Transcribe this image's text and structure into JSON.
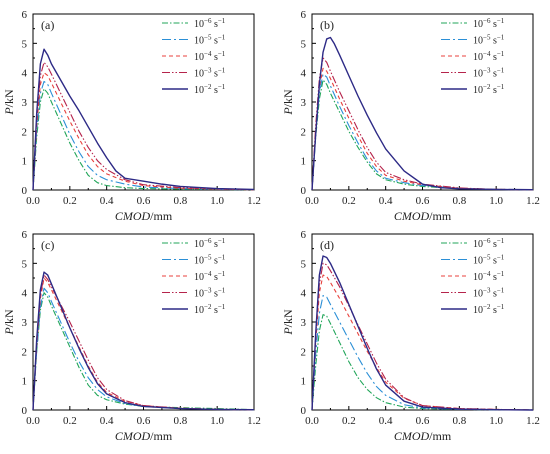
{
  "chart_data": [
    {
      "type": "line",
      "panel_label": "(a)",
      "xlabel_italic": "CMOD",
      "xlabel_unit": "/mm",
      "ylabel_italic": "P",
      "ylabel_unit": "/kN",
      "xlim": [
        0,
        1.2
      ],
      "ylim": [
        0,
        6
      ],
      "xticks": [
        "0.0",
        "0.2",
        "0.4",
        "0.6",
        "0.8",
        "1.0",
        "1.2"
      ],
      "yticks": [
        "0",
        "1",
        "2",
        "3",
        "4",
        "5",
        "6"
      ],
      "grid": false,
      "legend_position": "top-right",
      "series": [
        {
          "legend_base": "10",
          "legend_exp": "−6",
          "legend_unit": " s",
          "legend_unit_exp": "−1",
          "color": "#22a65a",
          "dash": "6,2,1.5,2",
          "x": [
            0,
            0.02,
            0.04,
            0.06,
            0.08,
            0.1,
            0.15,
            0.2,
            0.25,
            0.3,
            0.35,
            0.4,
            0.5,
            0.6,
            0.8,
            1.0,
            1.2
          ],
          "y": [
            0,
            1.8,
            3.0,
            3.45,
            3.3,
            3.0,
            2.3,
            1.6,
            1.0,
            0.5,
            0.25,
            0.15,
            0.08,
            0.05,
            0.03,
            0.02,
            0.01
          ]
        },
        {
          "legend_base": "10",
          "legend_exp": "−5",
          "legend_unit": " s",
          "legend_unit_exp": "−1",
          "color": "#2b8fd6",
          "dash": "9,3,2,3",
          "x": [
            0,
            0.02,
            0.04,
            0.06,
            0.08,
            0.1,
            0.15,
            0.2,
            0.25,
            0.3,
            0.35,
            0.4,
            0.5,
            0.6,
            0.8,
            1.0,
            1.2
          ],
          "y": [
            0,
            2.0,
            3.3,
            3.7,
            3.6,
            3.3,
            2.6,
            1.9,
            1.3,
            0.8,
            0.5,
            0.35,
            0.2,
            0.1,
            0.05,
            0.02,
            0.01
          ]
        },
        {
          "legend_base": "10",
          "legend_exp": "−4",
          "legend_unit": " s",
          "legend_unit_exp": "−1",
          "color": "#e8413c",
          "dash": "4,3",
          "x": [
            0,
            0.02,
            0.04,
            0.06,
            0.08,
            0.1,
            0.15,
            0.2,
            0.25,
            0.3,
            0.35,
            0.4,
            0.5,
            0.6,
            0.8,
            1.0,
            1.2
          ],
          "y": [
            0,
            2.2,
            3.6,
            4.0,
            3.9,
            3.65,
            3.0,
            2.35,
            1.75,
            1.2,
            0.8,
            0.55,
            0.3,
            0.15,
            0.06,
            0.03,
            0.01
          ]
        },
        {
          "legend_base": "10",
          "legend_exp": "−3",
          "legend_unit": " s",
          "legend_unit_exp": "−1",
          "color": "#b5234b",
          "dash": "8,2,1.5,2,1.5,2",
          "x": [
            0,
            0.02,
            0.04,
            0.06,
            0.08,
            0.1,
            0.15,
            0.2,
            0.25,
            0.3,
            0.35,
            0.4,
            0.5,
            0.6,
            0.8,
            1.0,
            1.2
          ],
          "y": [
            0,
            2.4,
            3.9,
            4.35,
            4.2,
            3.95,
            3.3,
            2.65,
            2.0,
            1.45,
            1.0,
            0.7,
            0.35,
            0.18,
            0.08,
            0.03,
            0.01
          ]
        },
        {
          "legend_base": "10",
          "legend_exp": "−2",
          "legend_unit": " s",
          "legend_unit_exp": "−1",
          "color": "#2d2a86",
          "dash": "",
          "x": [
            0,
            0.02,
            0.04,
            0.06,
            0.08,
            0.1,
            0.15,
            0.2,
            0.25,
            0.3,
            0.35,
            0.4,
            0.45,
            0.5,
            0.6,
            0.7,
            0.8,
            1.0,
            1.2
          ],
          "y": [
            0,
            2.6,
            4.3,
            4.8,
            4.6,
            4.3,
            3.75,
            3.2,
            2.7,
            2.15,
            1.6,
            1.1,
            0.65,
            0.4,
            0.3,
            0.2,
            0.12,
            0.05,
            0.02
          ]
        }
      ]
    },
    {
      "type": "line",
      "panel_label": "(b)",
      "xlabel_italic": "CMOD",
      "xlabel_unit": "/mm",
      "ylabel_italic": "P",
      "ylabel_unit": "/kN",
      "xlim": [
        0,
        1.2
      ],
      "ylim": [
        0,
        6
      ],
      "xticks": [
        "0.0",
        "0.2",
        "0.4",
        "0.6",
        "0.8",
        "1.0",
        "1.2"
      ],
      "yticks": [
        "0",
        "1",
        "2",
        "3",
        "4",
        "5",
        "6"
      ],
      "grid": false,
      "legend_position": "top-right",
      "series": [
        {
          "legend_base": "10",
          "legend_exp": "−6",
          "legend_unit": " s",
          "legend_unit_exp": "−1",
          "color": "#22a65a",
          "dash": "6,2,1.5,2",
          "x": [
            0,
            0.02,
            0.04,
            0.06,
            0.08,
            0.1,
            0.15,
            0.2,
            0.25,
            0.3,
            0.35,
            0.4,
            0.5,
            0.6,
            0.8,
            1.0,
            1.2
          ],
          "y": [
            0,
            1.8,
            3.1,
            3.75,
            3.6,
            3.3,
            2.65,
            2.0,
            1.45,
            0.95,
            0.55,
            0.35,
            0.2,
            0.12,
            0.05,
            0.02,
            0.01
          ]
        },
        {
          "legend_base": "10",
          "legend_exp": "−5",
          "legend_unit": " s",
          "legend_unit_exp": "−1",
          "color": "#2b8fd6",
          "dash": "9,3,2,3",
          "x": [
            0,
            0.02,
            0.04,
            0.06,
            0.08,
            0.1,
            0.15,
            0.2,
            0.25,
            0.3,
            0.35,
            0.4,
            0.5,
            0.6,
            0.8,
            1.0,
            1.2
          ],
          "y": [
            0,
            1.9,
            3.3,
            3.95,
            3.85,
            3.55,
            2.85,
            2.2,
            1.6,
            1.05,
            0.65,
            0.4,
            0.25,
            0.15,
            0.06,
            0.02,
            0.01
          ]
        },
        {
          "legend_base": "10",
          "legend_exp": "−4",
          "legend_unit": " s",
          "legend_unit_exp": "−1",
          "color": "#e8413c",
          "dash": "4,3",
          "x": [
            0,
            0.02,
            0.04,
            0.06,
            0.08,
            0.1,
            0.15,
            0.2,
            0.25,
            0.3,
            0.35,
            0.4,
            0.5,
            0.6,
            0.8,
            1.0,
            1.2
          ],
          "y": [
            0,
            2.0,
            3.5,
            4.15,
            4.05,
            3.8,
            3.1,
            2.45,
            1.85,
            1.25,
            0.8,
            0.5,
            0.3,
            0.18,
            0.06,
            0.02,
            0.01
          ]
        },
        {
          "legend_base": "10",
          "legend_exp": "−3",
          "legend_unit": " s",
          "legend_unit_exp": "−1",
          "color": "#b5234b",
          "dash": "8,2,1.5,2,1.5,2",
          "x": [
            0,
            0.02,
            0.04,
            0.06,
            0.08,
            0.1,
            0.15,
            0.2,
            0.25,
            0.3,
            0.35,
            0.4,
            0.5,
            0.6,
            0.8,
            1.0,
            1.2
          ],
          "y": [
            0,
            2.2,
            3.8,
            4.5,
            4.35,
            4.05,
            3.35,
            2.7,
            2.05,
            1.45,
            0.95,
            0.6,
            0.35,
            0.2,
            0.07,
            0.02,
            0.01
          ]
        },
        {
          "legend_base": "10",
          "legend_exp": "−2",
          "legend_unit": " s",
          "legend_unit_exp": "−1",
          "color": "#2d2a86",
          "dash": "",
          "x": [
            0,
            0.02,
            0.04,
            0.06,
            0.08,
            0.1,
            0.12,
            0.15,
            0.2,
            0.25,
            0.3,
            0.35,
            0.4,
            0.5,
            0.6,
            0.7,
            0.8,
            1.0,
            1.2
          ],
          "y": [
            0,
            1.9,
            3.6,
            4.7,
            5.15,
            5.2,
            5.0,
            4.6,
            3.9,
            3.2,
            2.55,
            1.95,
            1.4,
            0.65,
            0.2,
            0.08,
            0.04,
            0.02,
            0.01
          ]
        }
      ]
    },
    {
      "type": "line",
      "panel_label": "(c)",
      "xlabel_italic": "CMOD",
      "xlabel_unit": "/mm",
      "ylabel_italic": "P",
      "ylabel_unit": "/kN",
      "xlim": [
        0,
        1.2
      ],
      "ylim": [
        0,
        6
      ],
      "xticks": [
        "0.0",
        "0.2",
        "0.4",
        "0.6",
        "0.8",
        "1.0",
        "1.2"
      ],
      "yticks": [
        "0",
        "1",
        "2",
        "3",
        "4",
        "5",
        "6"
      ],
      "grid": false,
      "legend_position": "top-right",
      "series": [
        {
          "legend_base": "10",
          "legend_exp": "−6",
          "legend_unit": " s",
          "legend_unit_exp": "−1",
          "color": "#22a65a",
          "dash": "6,2,1.5,2",
          "x": [
            0,
            0.02,
            0.04,
            0.06,
            0.08,
            0.1,
            0.15,
            0.2,
            0.25,
            0.3,
            0.35,
            0.4,
            0.5,
            0.6,
            0.8,
            1.0,
            1.1,
            1.2
          ],
          "y": [
            0,
            2.0,
            3.4,
            4.0,
            3.85,
            3.55,
            2.85,
            2.15,
            1.45,
            0.85,
            0.5,
            0.35,
            0.2,
            0.12,
            0.08,
            0.05,
            0.03,
            0.01
          ]
        },
        {
          "legend_base": "10",
          "legend_exp": "−5",
          "legend_unit": " s",
          "legend_unit_exp": "−1",
          "color": "#2b8fd6",
          "dash": "9,3,2,3",
          "x": [
            0,
            0.02,
            0.04,
            0.06,
            0.08,
            0.1,
            0.15,
            0.2,
            0.25,
            0.3,
            0.35,
            0.4,
            0.5,
            0.6,
            0.8,
            1.0,
            1.2
          ],
          "y": [
            0,
            2.0,
            3.5,
            4.15,
            4.0,
            3.7,
            3.0,
            2.3,
            1.65,
            1.1,
            0.7,
            0.45,
            0.22,
            0.12,
            0.05,
            0.02,
            0.01
          ]
        },
        {
          "legend_base": "10",
          "legend_exp": "−4",
          "legend_unit": " s",
          "legend_unit_exp": "−1",
          "color": "#e8413c",
          "dash": "4,3",
          "x": [
            0,
            0.02,
            0.04,
            0.06,
            0.08,
            0.1,
            0.15,
            0.2,
            0.25,
            0.3,
            0.35,
            0.4,
            0.5,
            0.6,
            0.8,
            1.0,
            1.2
          ],
          "y": [
            0,
            2.2,
            3.8,
            4.5,
            4.35,
            4.1,
            3.45,
            2.8,
            2.15,
            1.5,
            0.95,
            0.6,
            0.3,
            0.15,
            0.06,
            0.02,
            0.01
          ]
        },
        {
          "legend_base": "10",
          "legend_exp": "−3",
          "legend_unit": " s",
          "legend_unit_exp": "−1",
          "color": "#b5234b",
          "dash": "8,2,1.5,2,1.5,2",
          "x": [
            0,
            0.02,
            0.04,
            0.06,
            0.08,
            0.1,
            0.15,
            0.2,
            0.25,
            0.3,
            0.35,
            0.4,
            0.5,
            0.6,
            0.8,
            1.0,
            1.2
          ],
          "y": [
            0,
            2.3,
            3.9,
            4.6,
            4.45,
            4.2,
            3.6,
            3.0,
            2.35,
            1.7,
            1.1,
            0.7,
            0.32,
            0.15,
            0.06,
            0.02,
            0.01
          ]
        },
        {
          "legend_base": "10",
          "legend_exp": "−2",
          "legend_unit": " s",
          "legend_unit_exp": "−1",
          "color": "#2d2a86",
          "dash": "",
          "x": [
            0,
            0.02,
            0.04,
            0.06,
            0.08,
            0.1,
            0.15,
            0.2,
            0.25,
            0.3,
            0.35,
            0.4,
            0.5,
            0.6,
            0.8,
            1.0,
            1.2
          ],
          "y": [
            0,
            2.4,
            4.1,
            4.7,
            4.6,
            4.3,
            3.55,
            2.8,
            2.1,
            1.45,
            0.9,
            0.55,
            0.25,
            0.12,
            0.05,
            0.02,
            0.01
          ]
        }
      ]
    },
    {
      "type": "line",
      "panel_label": "(d)",
      "xlabel_italic": "CMOD",
      "xlabel_unit": "/mm",
      "ylabel_italic": "P",
      "ylabel_unit": "/kN",
      "xlim": [
        0,
        1.2
      ],
      "ylim": [
        0,
        6
      ],
      "xticks": [
        "0.0",
        "0.2",
        "0.4",
        "0.6",
        "0.8",
        "1.0",
        "1.2"
      ],
      "yticks": [
        "0",
        "1",
        "2",
        "3",
        "4",
        "5",
        "6"
      ],
      "grid": false,
      "legend_position": "top-right",
      "series": [
        {
          "legend_base": "10",
          "legend_exp": "−6",
          "legend_unit": " s",
          "legend_unit_exp": "−1",
          "color": "#22a65a",
          "dash": "6,2,1.5,2",
          "x": [
            0,
            0.02,
            0.04,
            0.06,
            0.08,
            0.1,
            0.15,
            0.2,
            0.25,
            0.3,
            0.35,
            0.4,
            0.5,
            0.6,
            0.8,
            1.0,
            1.2
          ],
          "y": [
            0,
            1.5,
            2.7,
            3.25,
            3.2,
            2.95,
            2.3,
            1.65,
            1.1,
            0.7,
            0.42,
            0.25,
            0.1,
            0.05,
            0.02,
            0.01,
            0.0
          ]
        },
        {
          "legend_base": "10",
          "legend_exp": "−5",
          "legend_unit": " s",
          "legend_unit_exp": "−1",
          "color": "#2b8fd6",
          "dash": "9,3,2,3",
          "x": [
            0,
            0.02,
            0.04,
            0.06,
            0.08,
            0.1,
            0.15,
            0.2,
            0.25,
            0.3,
            0.35,
            0.4,
            0.5,
            0.6,
            0.8,
            1.0,
            1.2
          ],
          "y": [
            0,
            1.9,
            3.3,
            3.9,
            3.85,
            3.6,
            3.0,
            2.4,
            1.8,
            1.25,
            0.8,
            0.5,
            0.18,
            0.07,
            0.02,
            0.01,
            0.0
          ]
        },
        {
          "legend_base": "10",
          "legend_exp": "−4",
          "legend_unit": " s",
          "legend_unit_exp": "−1",
          "color": "#e8413c",
          "dash": "4,3",
          "x": [
            0,
            0.02,
            0.04,
            0.06,
            0.08,
            0.1,
            0.15,
            0.2,
            0.25,
            0.3,
            0.35,
            0.4,
            0.5,
            0.6,
            0.8,
            1.0,
            1.2
          ],
          "y": [
            0,
            2.3,
            4.0,
            4.6,
            4.55,
            4.35,
            3.8,
            3.2,
            2.6,
            2.0,
            1.45,
            0.95,
            0.4,
            0.15,
            0.05,
            0.02,
            0.0
          ]
        },
        {
          "legend_base": "10",
          "legend_exp": "−3",
          "legend_unit": " s",
          "legend_unit_exp": "−1",
          "color": "#b5234b",
          "dash": "8,2,1.5,2,1.5,2",
          "x": [
            0,
            0.02,
            0.04,
            0.06,
            0.08,
            0.1,
            0.15,
            0.2,
            0.25,
            0.3,
            0.35,
            0.4,
            0.5,
            0.6,
            0.8,
            1.0,
            1.2
          ],
          "y": [
            0,
            2.5,
            4.3,
            5.0,
            4.95,
            4.75,
            4.2,
            3.55,
            2.9,
            2.25,
            1.6,
            1.05,
            0.42,
            0.15,
            0.05,
            0.02,
            0.0
          ]
        },
        {
          "legend_base": "10",
          "legend_exp": "−2",
          "legend_unit": " s",
          "legend_unit_exp": "−1",
          "color": "#2d2a86",
          "dash": "",
          "x": [
            0,
            0.02,
            0.04,
            0.06,
            0.08,
            0.1,
            0.15,
            0.2,
            0.25,
            0.3,
            0.35,
            0.4,
            0.5,
            0.6,
            0.8,
            1.0,
            1.2
          ],
          "y": [
            0,
            2.6,
            4.6,
            5.25,
            5.2,
            5.0,
            4.35,
            3.6,
            2.85,
            2.1,
            1.4,
            0.85,
            0.3,
            0.1,
            0.03,
            0.01,
            0.0
          ]
        }
      ]
    }
  ]
}
